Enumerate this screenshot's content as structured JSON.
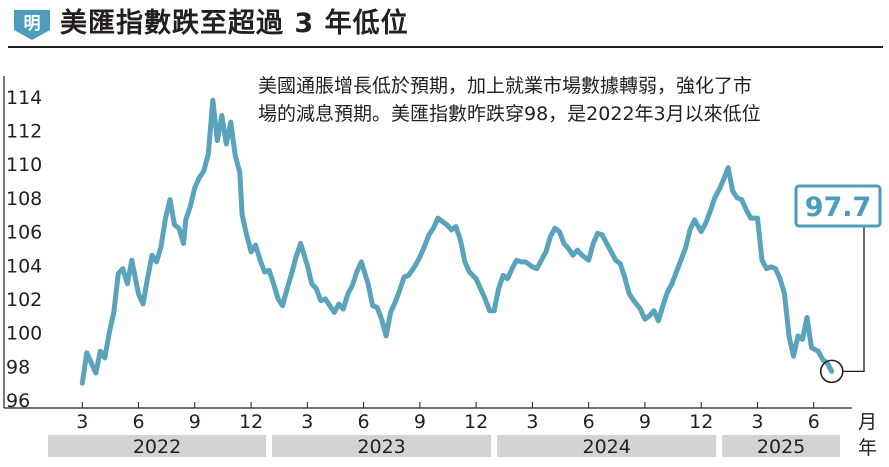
{
  "header": {
    "badge": "明",
    "title": "美匯指數跌至超過 3 年低位"
  },
  "note": {
    "line1": "美國通脹增長低於預期，加上就業市場數據轉弱，強化了市",
    "line2": "場的減息預期。美匯指數昨跌穿98，是2022年3月以來低位"
  },
  "colors": {
    "line": "#5aa3bd",
    "accent": "#4d9bbd",
    "year_band": "#d1d3d4",
    "text": "#231f20"
  },
  "chart_data": {
    "type": "line",
    "ylim": [
      96,
      115
    ],
    "yticks": [
      96,
      98,
      100,
      102,
      104,
      106,
      108,
      110,
      112,
      114
    ],
    "month_ticks": [
      "3",
      "6",
      "9",
      "12",
      "3",
      "6",
      "9",
      "12",
      "3",
      "6",
      "9",
      "12",
      "3",
      "6"
    ],
    "month_unit": "月",
    "years": [
      "2022",
      "2023",
      "2024",
      "2025"
    ],
    "year_unit": "年",
    "last_value_label": "97.7",
    "series": [
      {
        "values": [
          [
            2022.17,
            97.0
          ],
          [
            2022.19,
            98.8
          ],
          [
            2022.21,
            98.2
          ],
          [
            2022.23,
            97.6
          ],
          [
            2022.25,
            98.9
          ],
          [
            2022.27,
            98.5
          ],
          [
            2022.29,
            100.0
          ],
          [
            2022.31,
            101.2
          ],
          [
            2022.33,
            103.5
          ],
          [
            2022.35,
            103.8
          ],
          [
            2022.37,
            102.9
          ],
          [
            2022.39,
            104.3
          ],
          [
            2022.42,
            102.3
          ],
          [
            2022.44,
            101.7
          ],
          [
            2022.46,
            103.2
          ],
          [
            2022.48,
            104.6
          ],
          [
            2022.5,
            104.2
          ],
          [
            2022.52,
            105.1
          ],
          [
            2022.54,
            106.8
          ],
          [
            2022.56,
            107.9
          ],
          [
            2022.58,
            106.4
          ],
          [
            2022.6,
            106.2
          ],
          [
            2022.62,
            105.3
          ],
          [
            2022.63,
            106.7
          ],
          [
            2022.65,
            107.5
          ],
          [
            2022.67,
            108.6
          ],
          [
            2022.69,
            109.2
          ],
          [
            2022.71,
            109.6
          ],
          [
            2022.73,
            110.6
          ],
          [
            2022.75,
            113.8
          ],
          [
            2022.77,
            111.4
          ],
          [
            2022.79,
            112.9
          ],
          [
            2022.81,
            111.2
          ],
          [
            2022.83,
            112.5
          ],
          [
            2022.85,
            110.5
          ],
          [
            2022.87,
            109.5
          ],
          [
            2022.88,
            107.0
          ],
          [
            2022.9,
            105.8
          ],
          [
            2022.92,
            104.8
          ],
          [
            2022.94,
            105.2
          ],
          [
            2022.96,
            104.3
          ],
          [
            2022.98,
            103.6
          ],
          [
            2023.0,
            103.7
          ],
          [
            2023.02,
            102.9
          ],
          [
            2023.04,
            102.0
          ],
          [
            2023.06,
            101.6
          ],
          [
            2023.08,
            102.6
          ],
          [
            2023.1,
            103.5
          ],
          [
            2023.12,
            104.5
          ],
          [
            2023.14,
            105.3
          ],
          [
            2023.17,
            104.0
          ],
          [
            2023.19,
            102.9
          ],
          [
            2023.21,
            102.6
          ],
          [
            2023.23,
            101.9
          ],
          [
            2023.25,
            102.0
          ],
          [
            2023.27,
            101.6
          ],
          [
            2023.29,
            101.2
          ],
          [
            2023.31,
            101.7
          ],
          [
            2023.33,
            101.4
          ],
          [
            2023.35,
            102.3
          ],
          [
            2023.37,
            102.8
          ],
          [
            2023.39,
            103.6
          ],
          [
            2023.41,
            104.2
          ],
          [
            2023.44,
            102.9
          ],
          [
            2023.46,
            101.6
          ],
          [
            2023.48,
            101.5
          ],
          [
            2023.5,
            100.8
          ],
          [
            2023.52,
            99.8
          ],
          [
            2023.54,
            101.2
          ],
          [
            2023.56,
            101.8
          ],
          [
            2023.58,
            102.5
          ],
          [
            2023.6,
            103.3
          ],
          [
            2023.62,
            103.4
          ],
          [
            2023.65,
            104.0
          ],
          [
            2023.67,
            104.5
          ],
          [
            2023.69,
            105.1
          ],
          [
            2023.71,
            105.8
          ],
          [
            2023.73,
            106.2
          ],
          [
            2023.75,
            106.8
          ],
          [
            2023.77,
            106.6
          ],
          [
            2023.79,
            106.4
          ],
          [
            2023.81,
            106.1
          ],
          [
            2023.83,
            106.3
          ],
          [
            2023.85,
            105.5
          ],
          [
            2023.87,
            104.2
          ],
          [
            2023.89,
            103.6
          ],
          [
            2023.92,
            103.2
          ],
          [
            2023.94,
            102.6
          ],
          [
            2023.96,
            102.0
          ],
          [
            2023.98,
            101.3
          ],
          [
            2024.0,
            101.3
          ],
          [
            2024.02,
            102.6
          ],
          [
            2024.04,
            103.4
          ],
          [
            2024.06,
            103.2
          ],
          [
            2024.08,
            103.8
          ],
          [
            2024.1,
            104.3
          ],
          [
            2024.12,
            104.2
          ],
          [
            2024.14,
            104.2
          ],
          [
            2024.17,
            103.9
          ],
          [
            2024.19,
            103.8
          ],
          [
            2024.21,
            104.3
          ],
          [
            2024.23,
            104.8
          ],
          [
            2024.25,
            105.7
          ],
          [
            2024.27,
            106.2
          ],
          [
            2024.29,
            106.0
          ],
          [
            2024.31,
            105.3
          ],
          [
            2024.33,
            105.0
          ],
          [
            2024.35,
            104.6
          ],
          [
            2024.37,
            104.9
          ],
          [
            2024.39,
            104.6
          ],
          [
            2024.42,
            104.3
          ],
          [
            2024.44,
            105.3
          ],
          [
            2024.46,
            105.9
          ],
          [
            2024.48,
            105.8
          ],
          [
            2024.5,
            105.3
          ],
          [
            2024.52,
            104.8
          ],
          [
            2024.54,
            104.3
          ],
          [
            2024.56,
            104.1
          ],
          [
            2024.58,
            103.3
          ],
          [
            2024.6,
            102.3
          ],
          [
            2024.62,
            101.9
          ],
          [
            2024.65,
            101.4
          ],
          [
            2024.67,
            100.8
          ],
          [
            2024.69,
            101.0
          ],
          [
            2024.71,
            101.3
          ],
          [
            2024.73,
            100.7
          ],
          [
            2024.75,
            101.6
          ],
          [
            2024.77,
            102.4
          ],
          [
            2024.79,
            102.9
          ],
          [
            2024.81,
            103.6
          ],
          [
            2024.83,
            104.3
          ],
          [
            2024.85,
            105.0
          ],
          [
            2024.87,
            106.1
          ],
          [
            2024.89,
            106.7
          ],
          [
            2024.92,
            106.0
          ],
          [
            2024.94,
            106.5
          ],
          [
            2024.96,
            107.2
          ],
          [
            2024.98,
            108.0
          ],
          [
            2025.0,
            108.5
          ],
          [
            2025.02,
            109.1
          ],
          [
            2025.04,
            109.8
          ],
          [
            2025.06,
            108.4
          ],
          [
            2025.08,
            108.0
          ],
          [
            2025.1,
            107.9
          ],
          [
            2025.12,
            107.3
          ],
          [
            2025.14,
            106.8
          ],
          [
            2025.17,
            106.8
          ],
          [
            2025.19,
            104.3
          ],
          [
            2025.21,
            103.8
          ],
          [
            2025.23,
            103.9
          ],
          [
            2025.25,
            103.8
          ],
          [
            2025.27,
            103.2
          ],
          [
            2025.29,
            102.3
          ],
          [
            2025.31,
            99.8
          ],
          [
            2025.33,
            98.6
          ],
          [
            2025.35,
            99.8
          ],
          [
            2025.37,
            99.6
          ],
          [
            2025.39,
            100.9
          ],
          [
            2025.41,
            99.1
          ],
          [
            2025.44,
            98.9
          ],
          [
            2025.46,
            98.4
          ],
          [
            2025.48,
            98.2
          ],
          [
            2025.5,
            97.7
          ]
        ]
      }
    ]
  }
}
